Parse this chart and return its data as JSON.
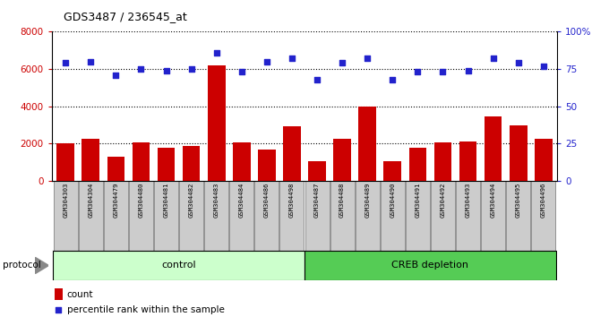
{
  "title": "GDS3487 / 236545_at",
  "samples": [
    "GSM304303",
    "GSM304304",
    "GSM304479",
    "GSM304480",
    "GSM304481",
    "GSM304482",
    "GSM304483",
    "GSM304484",
    "GSM304486",
    "GSM304498",
    "GSM304487",
    "GSM304488",
    "GSM304489",
    "GSM304490",
    "GSM304491",
    "GSM304492",
    "GSM304493",
    "GSM304494",
    "GSM304495",
    "GSM304496"
  ],
  "counts": [
    2000,
    2250,
    1300,
    2050,
    1750,
    1850,
    6200,
    2050,
    1650,
    2900,
    1050,
    2250,
    4000,
    1050,
    1750,
    2050,
    2100,
    3450,
    2950,
    2250
  ],
  "percentiles": [
    79,
    80,
    71,
    75,
    74,
    75,
    86,
    73,
    80,
    82,
    68,
    79,
    82,
    68,
    73,
    73,
    74,
    82,
    79,
    77
  ],
  "control_count": 10,
  "bar_color": "#cc0000",
  "dot_color": "#2222cc",
  "plot_bg": "#ffffff",
  "left_ylim": [
    0,
    8000
  ],
  "right_ylim": [
    0,
    100
  ],
  "left_yticks": [
    0,
    2000,
    4000,
    6000,
    8000
  ],
  "right_yticks": [
    0,
    25,
    50,
    75,
    100
  ],
  "right_yticklabels": [
    "0",
    "25",
    "50",
    "75",
    "100%"
  ],
  "control_label": "control",
  "treatment_label": "CREB depletion",
  "protocol_label": "protocol",
  "legend_count": "count",
  "legend_pct": "percentile rank within the sample",
  "control_bg": "#ccffcc",
  "treatment_bg": "#55cc55",
  "xticklabel_bg": "#cccccc"
}
